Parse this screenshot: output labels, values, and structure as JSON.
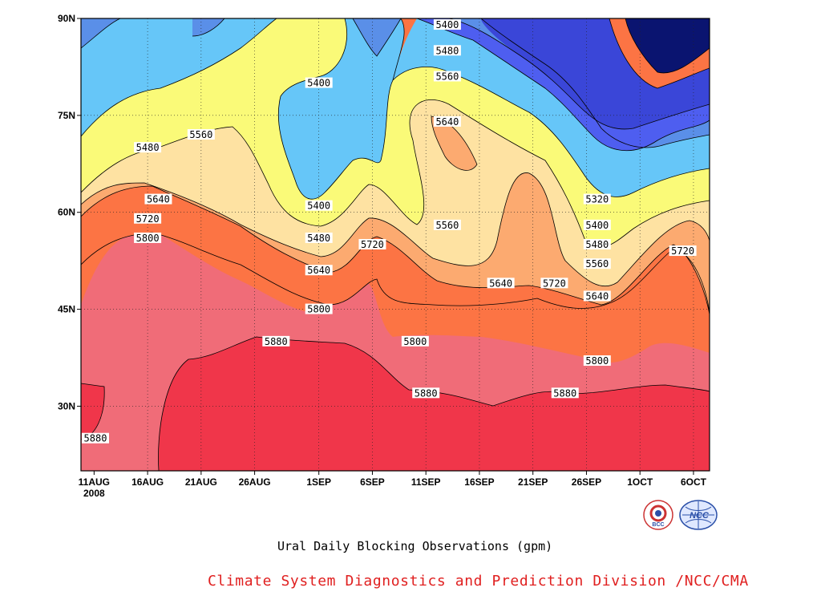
{
  "chart_data": {
    "type": "heatmap",
    "title": "Ural Daily Blocking Observations (gpm)",
    "x_axis": {
      "tick_labels": [
        "11AUG",
        "16AUG",
        "21AUG",
        "26AUG",
        "1SEP",
        "6SEP",
        "11SEP",
        "16SEP",
        "21SEP",
        "26SEP",
        "1OCT",
        "6OCT"
      ],
      "year_label": "2008",
      "range": [
        "2008-08-10",
        "2008-10-07"
      ]
    },
    "y_axis": {
      "tick_labels": [
        "30N",
        "45N",
        "60N",
        "75N",
        "90N"
      ],
      "ticks_deg": [
        30,
        45,
        60,
        75,
        90
      ],
      "range": [
        20,
        90
      ]
    },
    "levels": [
      5320,
      5400,
      5480,
      5560,
      5640,
      5720,
      5800,
      5880
    ],
    "colors": {
      "below_5320": "#0a1470",
      "5320_5400": "#3a46d8",
      "5400_5480": "#4e5ef0",
      "5480_5560": "#5a8fe8",
      "5560_5640": "#66c6f8",
      "5640_5720": "#fafa78",
      "5720_5800": "#fee2a2",
      "5800_5880": "#fcaa70",
      "5880_5960": "#fc7444",
      "above_5960": "#f06c78",
      "above_5880_core": "#f0364a"
    },
    "contour_labels": [
      {
        "v": "5400",
        "date": "2008-09-13",
        "lat": 89
      },
      {
        "v": "5480",
        "date": "2008-09-13",
        "lat": 85
      },
      {
        "v": "5560",
        "date": "2008-09-13",
        "lat": 81
      },
      {
        "v": "5400",
        "date": "2008-09-01",
        "lat": 80
      },
      {
        "v": "5640",
        "date": "2008-09-13",
        "lat": 74
      },
      {
        "v": "5560",
        "date": "2008-08-21",
        "lat": 72
      },
      {
        "v": "5480",
        "date": "2008-08-16",
        "lat": 70
      },
      {
        "v": "5640",
        "date": "2008-08-17",
        "lat": 62
      },
      {
        "v": "5320",
        "date": "2008-09-27",
        "lat": 62
      },
      {
        "v": "5400",
        "date": "2008-09-01",
        "lat": 61
      },
      {
        "v": "5720",
        "date": "2008-08-16",
        "lat": 59
      },
      {
        "v": "5400",
        "date": "2008-09-27",
        "lat": 58
      },
      {
        "v": "5560",
        "date": "2008-09-13",
        "lat": 58
      },
      {
        "v": "5480",
        "date": "2008-09-01",
        "lat": 56
      },
      {
        "v": "5800",
        "date": "2008-08-16",
        "lat": 56
      },
      {
        "v": "5720",
        "date": "2008-09-06",
        "lat": 55
      },
      {
        "v": "5480",
        "date": "2008-09-27",
        "lat": 55
      },
      {
        "v": "5720",
        "date": "2008-10-05",
        "lat": 54
      },
      {
        "v": "5560",
        "date": "2008-09-27",
        "lat": 52
      },
      {
        "v": "5640",
        "date": "2008-09-01",
        "lat": 51
      },
      {
        "v": "5640",
        "date": "2008-09-18",
        "lat": 49
      },
      {
        "v": "5720",
        "date": "2008-09-23",
        "lat": 49
      },
      {
        "v": "5640",
        "date": "2008-09-27",
        "lat": 47
      },
      {
        "v": "5800",
        "date": "2008-09-01",
        "lat": 45
      },
      {
        "v": "5800",
        "date": "2008-09-10",
        "lat": 40
      },
      {
        "v": "5880",
        "date": "2008-08-28",
        "lat": 40
      },
      {
        "v": "5800",
        "date": "2008-09-27",
        "lat": 37
      },
      {
        "v": "5880",
        "date": "2008-09-11",
        "lat": 32
      },
      {
        "v": "5880",
        "date": "2008-09-24",
        "lat": 32
      },
      {
        "v": "5880",
        "date": "2008-08-11",
        "lat": 25
      }
    ],
    "grid": true,
    "legend": "none"
  },
  "footer": {
    "credit": "Climate System Diagnostics and Prediction Division /NCC/CMA",
    "logos": [
      "bcc-logo-icon",
      "ncc-logo-icon"
    ],
    "logo_text": [
      "BCC",
      "NCC"
    ]
  }
}
